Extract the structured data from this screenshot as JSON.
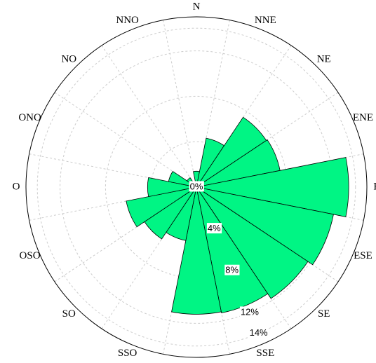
{
  "chart_data": {
    "type": "rose",
    "categories": [
      "N",
      "NNE",
      "NE",
      "ENE",
      "E",
      "ESE",
      "SE",
      "SSE",
      "S",
      "SSO",
      "SO",
      "OSO",
      "O",
      "ONO",
      "NO",
      "NNO"
    ],
    "values": [
      1.4,
      4.4,
      7.4,
      7.5,
      13.4,
      12.3,
      11.8,
      11.3,
      11.2,
      4.8,
      5.5,
      6.3,
      4.3,
      2.5,
      1.0,
      0.5
    ],
    "color": "#00f584",
    "rlim": [
      0,
      15
    ],
    "rticks": [
      {
        "value": 0,
        "label": "0%"
      },
      {
        "value": 4,
        "label": "4%"
      },
      {
        "value": 8,
        "label": "8%"
      },
      {
        "value": 12,
        "label": "12%"
      },
      {
        "value": 14,
        "label": "14%"
      }
    ],
    "grid": true
  }
}
